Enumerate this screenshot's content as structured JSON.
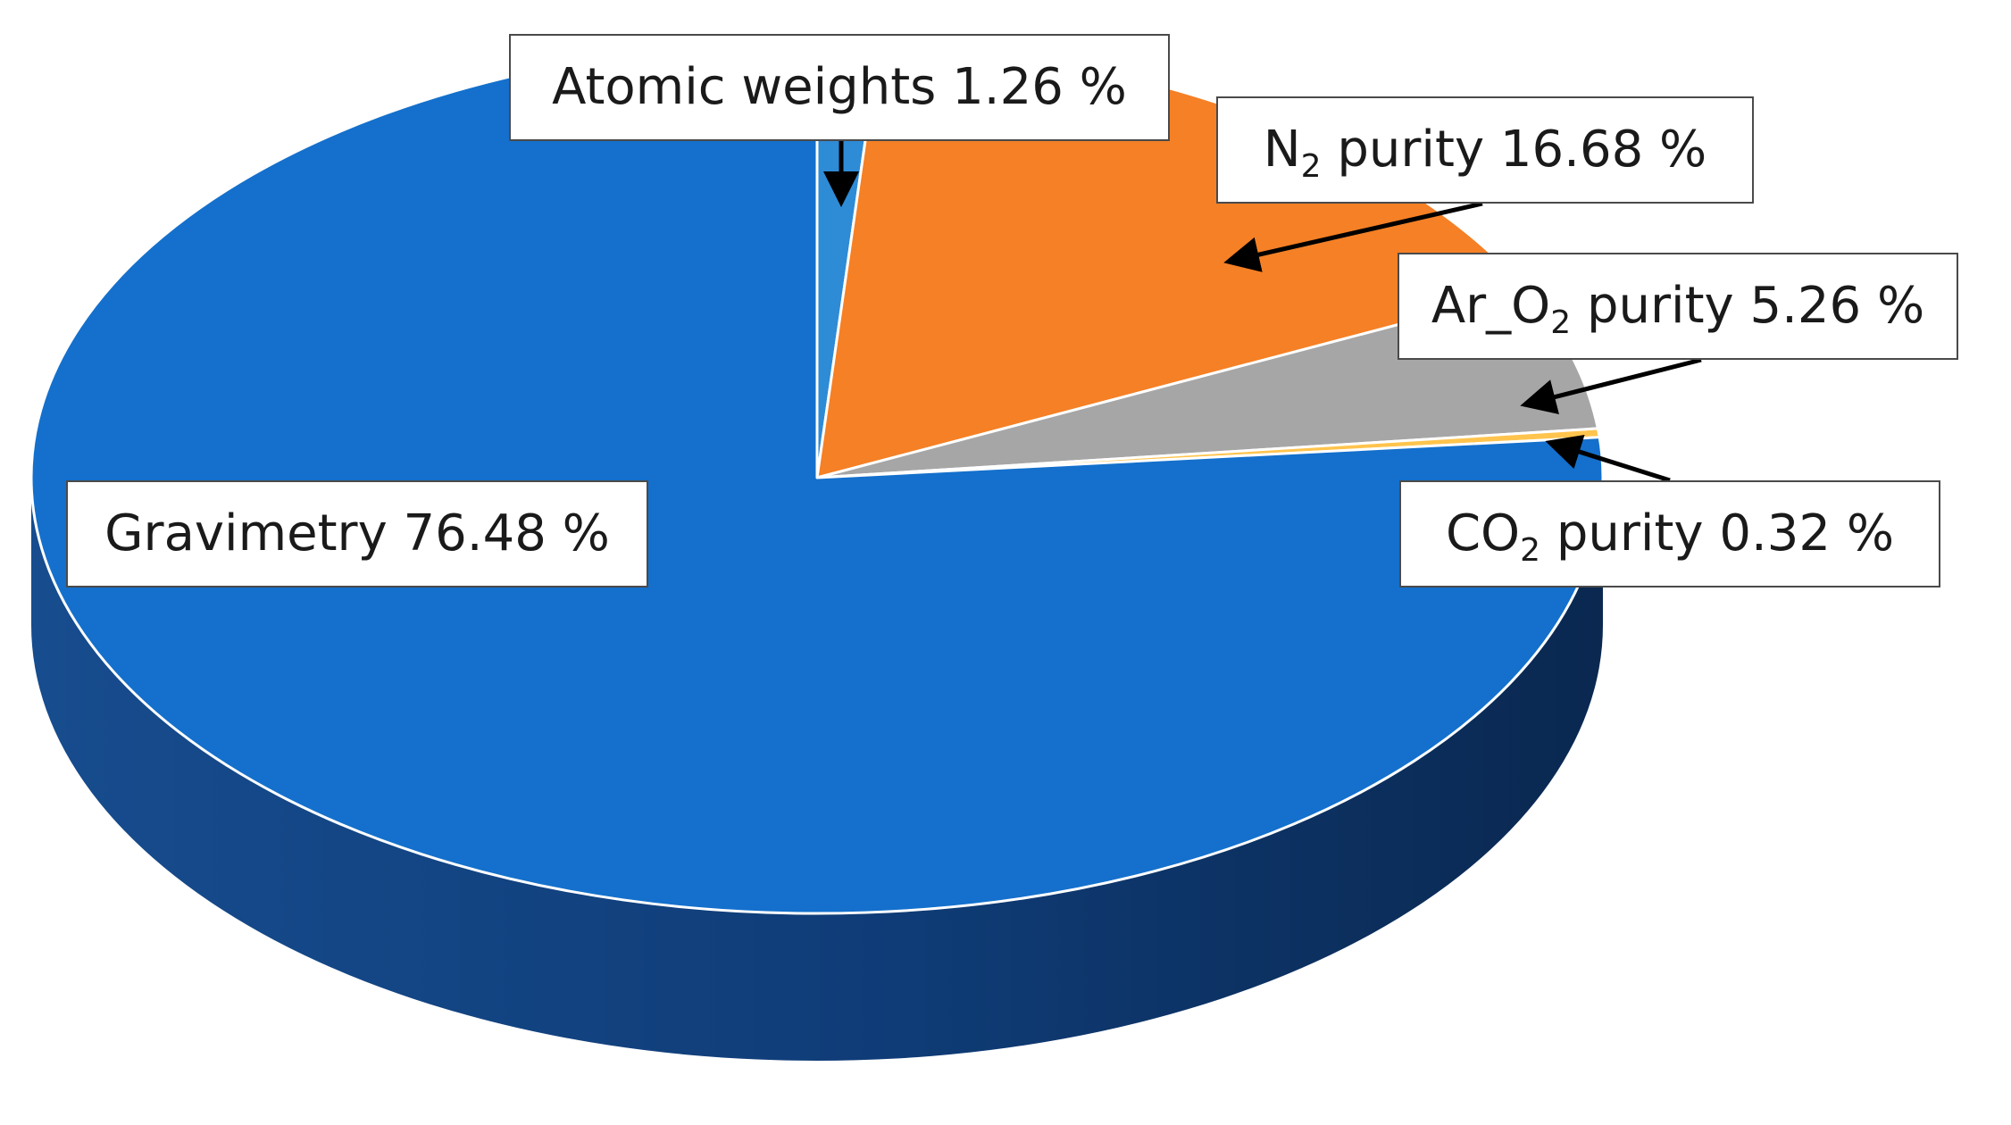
{
  "chart_data": {
    "type": "pie",
    "style": "3d",
    "labels": [
      "Atomic weights",
      "N2 purity",
      "Ar_O2 purity",
      "CO2 purity",
      "Gravimetry"
    ],
    "values": [
      1.26,
      16.68,
      5.26,
      0.32,
      76.48
    ],
    "unit": "%",
    "colors": [
      "#2e8bd6",
      "#f58025",
      "#a6a6a6",
      "#ffc44d",
      "#1470cc"
    ],
    "side_color": "#0f3c77",
    "title": "",
    "legend": "none"
  },
  "labels": [
    {
      "prefix": "Atomic weights 1.26 %",
      "sub": "",
      "suffix": ""
    },
    {
      "prefix": "N",
      "sub": "2",
      "suffix": " purity 16.68 %"
    },
    {
      "prefix": "Ar_O",
      "sub": "2",
      "suffix": " purity 5.26 %"
    },
    {
      "prefix": "CO",
      "sub": "2",
      "suffix": " purity 0.32 %"
    },
    {
      "prefix": "Gravimetry 76.48 %",
      "sub": "",
      "suffix": ""
    }
  ]
}
